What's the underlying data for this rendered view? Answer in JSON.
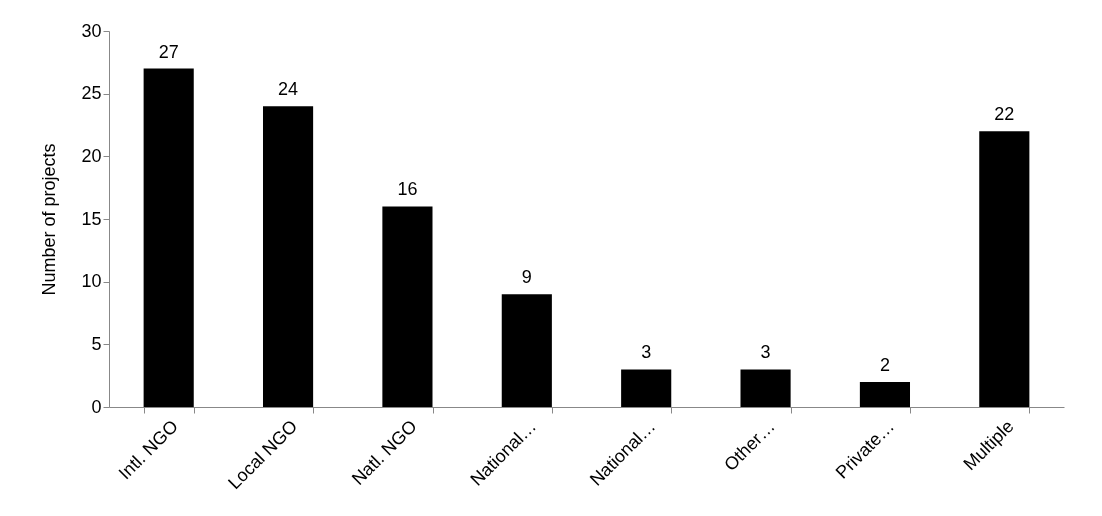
{
  "chart_data": {
    "type": "bar",
    "ylabel": "Number of projects",
    "categories": [
      "Intl. NGO",
      "Local NGO",
      "Natl. NGO",
      "National…",
      "National…",
      "Other…",
      "Private…",
      "Multiple"
    ],
    "values": [
      27,
      24,
      16,
      9,
      3,
      3,
      2,
      22
    ],
    "color": "#000000",
    "ylim": [
      0,
      30
    ],
    "yticks": [
      0,
      5,
      10,
      15,
      20,
      25,
      30
    ],
    "grid": false,
    "data_labels": true
  }
}
